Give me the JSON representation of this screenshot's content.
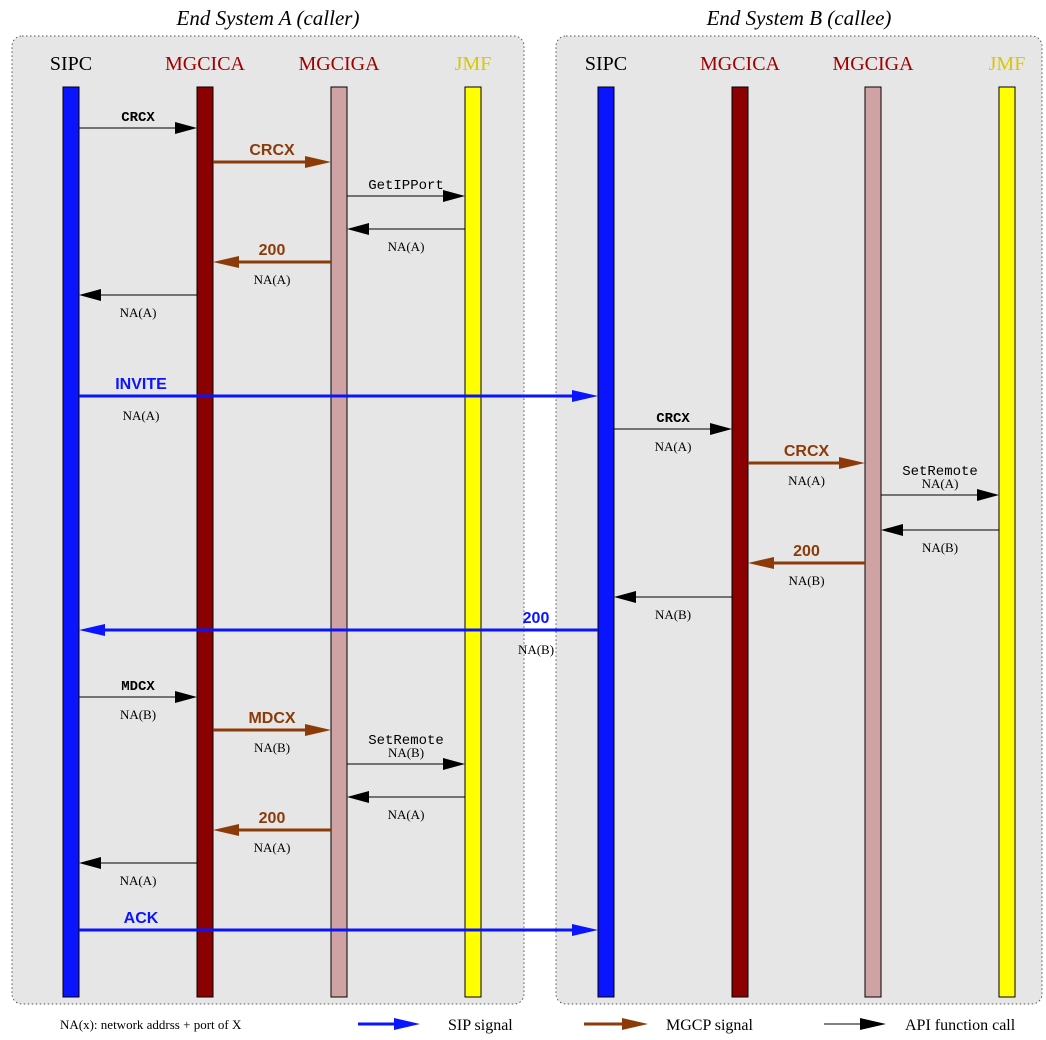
{
  "colors": {
    "sip": "#0a14ff",
    "mgcica": "#8b0000",
    "mgciga": "#cfa3a3",
    "jmf": "#ffff00",
    "mgcp": "#8b3a08",
    "api": "#000000",
    "system_bg": "#e6e6e6",
    "title_sipc": "#0a14ff",
    "title_mgcica": "#a00000",
    "title_mgciga": "#a00000",
    "title_jmf": "#d8c800"
  },
  "systems": [
    {
      "key": "A",
      "title": "End System A (caller)"
    },
    {
      "key": "B",
      "title": "End System B (callee)"
    }
  ],
  "components": {
    "A": [
      {
        "key": "A_SIPC",
        "label": "SIPC",
        "kind": "sip"
      },
      {
        "key": "A_MGCICA",
        "label": "MGCICA",
        "kind": "mgcica"
      },
      {
        "key": "A_MGCIGA",
        "label": "MGCIGA",
        "kind": "mgciga"
      },
      {
        "key": "A_JMF",
        "label": "JMF",
        "kind": "jmf"
      }
    ],
    "B": [
      {
        "key": "B_SIPC",
        "label": "SIPC",
        "kind": "sip"
      },
      {
        "key": "B_MGCICA",
        "label": "MGCICA",
        "kind": "mgcica"
      },
      {
        "key": "B_MGCIGA",
        "label": "MGCIGA",
        "kind": "mgciga"
      },
      {
        "key": "B_JMF",
        "label": "JMF",
        "kind": "jmf"
      }
    ]
  },
  "messages": [
    {
      "from": "A_SIPC",
      "to": "A_MGCICA",
      "type": "api",
      "label": "CRCX",
      "sub": ""
    },
    {
      "from": "A_MGCICA",
      "to": "A_MGCIGA",
      "type": "mgcp",
      "label": "CRCX",
      "sub": ""
    },
    {
      "from": "A_MGCIGA",
      "to": "A_JMF",
      "type": "api",
      "label": "GetIPPort",
      "sub": ""
    },
    {
      "from": "A_JMF",
      "to": "A_MGCIGA",
      "type": "api",
      "label": "",
      "sub": "NA(A)"
    },
    {
      "from": "A_MGCIGA",
      "to": "A_MGCICA",
      "type": "mgcp",
      "label": "200",
      "sub": "NA(A)"
    },
    {
      "from": "A_MGCICA",
      "to": "A_SIPC",
      "type": "api",
      "label": "",
      "sub": "NA(A)"
    },
    {
      "from": "A_SIPC",
      "to": "B_SIPC",
      "type": "sip",
      "label": "INVITE",
      "sub": "NA(A)"
    },
    {
      "from": "B_SIPC",
      "to": "B_MGCICA",
      "type": "api",
      "label": "CRCX",
      "sub": "NA(A)"
    },
    {
      "from": "B_MGCICA",
      "to": "B_MGCIGA",
      "type": "mgcp",
      "label": "CRCX",
      "sub": "NA(A)"
    },
    {
      "from": "B_MGCIGA",
      "to": "B_JMF",
      "type": "api",
      "label": "SetRemote",
      "sub": "NA(A)"
    },
    {
      "from": "B_JMF",
      "to": "B_MGCIGA",
      "type": "api",
      "label": "",
      "sub": "NA(B)"
    },
    {
      "from": "B_MGCIGA",
      "to": "B_MGCICA",
      "type": "mgcp",
      "label": "200",
      "sub": "NA(B)"
    },
    {
      "from": "B_MGCICA",
      "to": "B_SIPC",
      "type": "api",
      "label": "",
      "sub": "NA(B)"
    },
    {
      "from": "B_SIPC",
      "to": "A_SIPC",
      "type": "sip",
      "label": "200",
      "sub": "NA(B)"
    },
    {
      "from": "A_SIPC",
      "to": "A_MGCICA",
      "type": "api",
      "label": "MDCX",
      "sub": "NA(B)"
    },
    {
      "from": "A_MGCICA",
      "to": "A_MGCIGA",
      "type": "mgcp",
      "label": "MDCX",
      "sub": "NA(B)"
    },
    {
      "from": "A_MGCIGA",
      "to": "A_JMF",
      "type": "api",
      "label": "SetRemote",
      "sub": "NA(B)"
    },
    {
      "from": "A_JMF",
      "to": "A_MGCIGA",
      "type": "api",
      "label": "",
      "sub": "NA(A)"
    },
    {
      "from": "A_MGCIGA",
      "to": "A_MGCICA",
      "type": "mgcp",
      "label": "200",
      "sub": "NA(A)"
    },
    {
      "from": "A_MGCICA",
      "to": "A_SIPC",
      "type": "api",
      "label": "",
      "sub": "NA(A)"
    },
    {
      "from": "A_SIPC",
      "to": "B_SIPC",
      "type": "sip",
      "label": "ACK",
      "sub": ""
    }
  ],
  "legend": {
    "note": "NA(x): network addrss + port of X",
    "sip": "SIP signal",
    "mgcp": "MGCP signal",
    "api": "API function call"
  }
}
